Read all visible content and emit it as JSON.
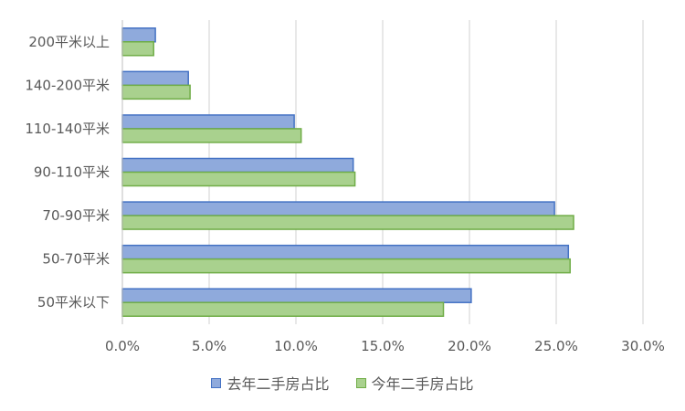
{
  "chart_data": {
    "type": "bar",
    "orientation": "horizontal",
    "categories": [
      "200平米以上",
      "140-200平米",
      "110-140平米",
      "90-110平米",
      "70-90平米",
      "50-70平米",
      "50平米以下"
    ],
    "series": [
      {
        "name": "去年二手房占比",
        "values": [
          1.9,
          3.8,
          9.9,
          13.3,
          24.9,
          25.7,
          20.1
        ],
        "color": "#8faadc",
        "stroke": "#4472c4"
      },
      {
        "name": "今年二手房占比",
        "values": [
          1.8,
          3.9,
          10.3,
          13.4,
          26.0,
          25.8,
          18.5
        ],
        "color": "#a9d18e",
        "stroke": "#70ad47"
      }
    ],
    "xlim": [
      0,
      30
    ],
    "x_ticks": [
      0,
      5,
      10,
      15,
      20,
      25,
      30
    ],
    "x_tick_labels": [
      "0.0%",
      "5.0%",
      "10.0%",
      "15.0%",
      "20.0%",
      "25.0%",
      "30.0%"
    ],
    "grid": true,
    "legend_position": "bottom"
  }
}
